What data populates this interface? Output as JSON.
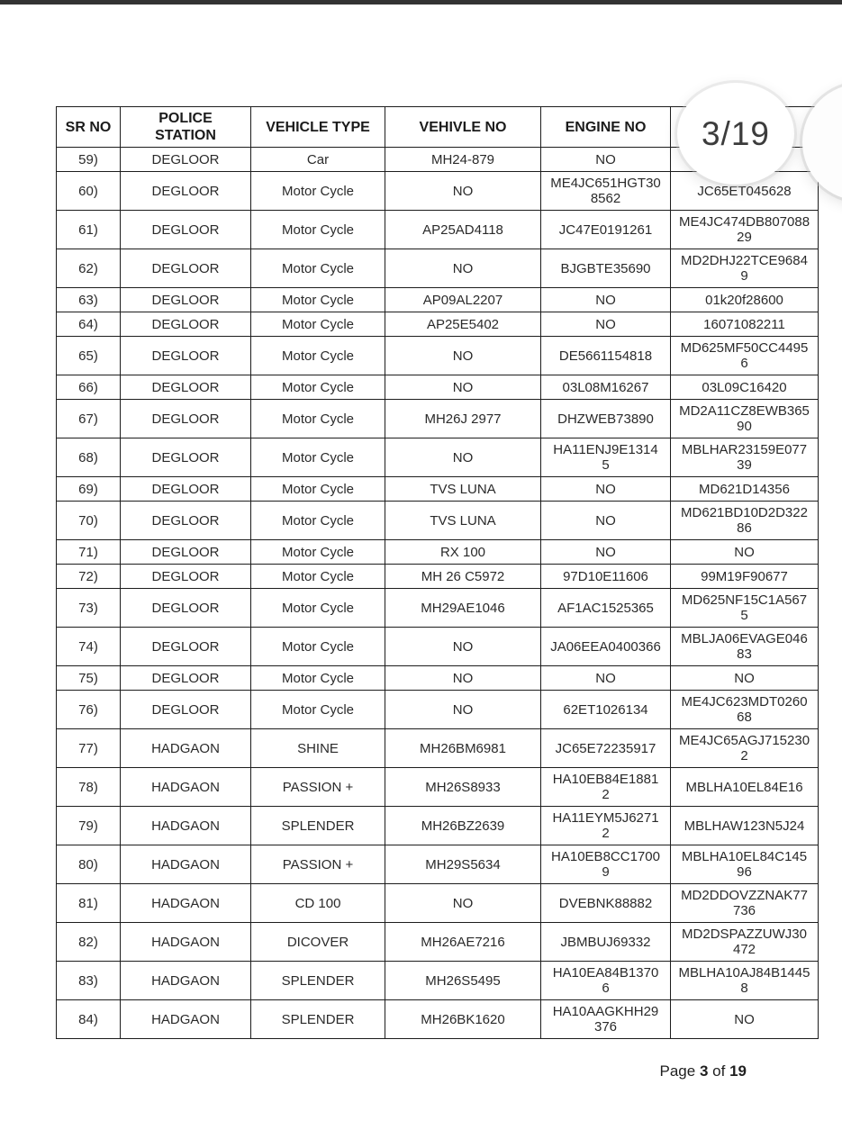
{
  "app": {
    "top_bar_color": "#333333",
    "page_indicator_label": "3/19"
  },
  "table": {
    "column_keys": [
      "sr-no",
      "police-station",
      "vehicle-type",
      "vehicle-no",
      "engine-no",
      "chassis-no"
    ],
    "headers": [
      "SR NO",
      "POLICE STATION",
      "VEHICLE TYPE",
      "VEHIVLE NO",
      "ENGINE NO",
      ""
    ],
    "rows": [
      [
        "59)",
        "DEGLOOR",
        "Car",
        "MH24-879",
        "NO",
        ""
      ],
      [
        "60)",
        "DEGLOOR",
        "Motor Cycle",
        "NO",
        "ME4JC651HGT308562",
        "JC65ET045628"
      ],
      [
        "61)",
        "DEGLOOR",
        "Motor Cycle",
        "AP25AD4118",
        "JC47E0191261",
        "ME4JC474DB80708829"
      ],
      [
        "62)",
        "DEGLOOR",
        "Motor Cycle",
        "NO",
        "BJGBTE35690",
        "MD2DHJ22TCE96849"
      ],
      [
        "63)",
        "DEGLOOR",
        "Motor Cycle",
        "AP09AL2207",
        "NO",
        "01k20f28600"
      ],
      [
        "64)",
        "DEGLOOR",
        "Motor Cycle",
        "AP25E5402",
        "NO",
        "16071082211"
      ],
      [
        "65)",
        "DEGLOOR",
        "Motor Cycle",
        "NO",
        "DE5661154818",
        "MD625MF50CC44956"
      ],
      [
        "66)",
        "DEGLOOR",
        "Motor Cycle",
        "NO",
        "03L08M16267",
        "03L09C16420"
      ],
      [
        "67)",
        "DEGLOOR",
        "Motor Cycle",
        "MH26J 2977",
        "DHZWEB73890",
        "MD2A11CZ8EWB36590"
      ],
      [
        "68)",
        "DEGLOOR",
        "Motor Cycle",
        "NO",
        "HA11ENJ9E13145",
        "MBLHAR23159E07739"
      ],
      [
        "69)",
        "DEGLOOR",
        "Motor Cycle",
        "TVS LUNA",
        "NO",
        "MD621D14356"
      ],
      [
        "70)",
        "DEGLOOR",
        "Motor Cycle",
        "TVS LUNA",
        "NO",
        "MD621BD10D2D32286"
      ],
      [
        "71)",
        "DEGLOOR",
        "Motor Cycle",
        "RX 100",
        "NO",
        "NO"
      ],
      [
        "72)",
        "DEGLOOR",
        "Motor Cycle",
        "MH 26 C5972",
        "97D10E11606",
        "99M19F90677"
      ],
      [
        "73)",
        "DEGLOOR",
        "Motor Cycle",
        "MH29AE1046",
        "AF1AC1525365",
        "MD625NF15C1A5675"
      ],
      [
        "74)",
        "DEGLOOR",
        "Motor Cycle",
        "NO",
        "JA06EEA0400366",
        "MBLJA06EVAGE04683"
      ],
      [
        "75)",
        "DEGLOOR",
        "Motor Cycle",
        "NO",
        "NO",
        "NO"
      ],
      [
        "76)",
        "DEGLOOR",
        "Motor Cycle",
        "NO",
        "62ET1026134",
        "ME4JC623MDT026068"
      ],
      [
        "77)",
        "HADGAON",
        "SHINE",
        "MH26BM6981",
        "JC65E72235917",
        "ME4JC65AGJ7152302"
      ],
      [
        "78)",
        "HADGAON",
        "PASSION +",
        "MH26S8933",
        "HA10EB84E18812",
        "MBLHA10EL84E16"
      ],
      [
        "79)",
        "HADGAON",
        "SPLENDER",
        "MH26BZ2639",
        "HA11EYM5J62712",
        "MBLHAW123N5J24"
      ],
      [
        "80)",
        "HADGAON",
        "PASSION +",
        "MH29S5634",
        "HA10EB8CC17009",
        "MBLHA10EL84C14596"
      ],
      [
        "81)",
        "HADGAON",
        "CD 100",
        "NO",
        "DVEBNK88882",
        "MD2DDOVZZNAK77736"
      ],
      [
        "82)",
        "HADGAON",
        "DICOVER",
        "MH26AE7216",
        "JBMBUJ69332",
        "MD2DSPAZZUWJ30472"
      ],
      [
        "83)",
        "HADGAON",
        "SPLENDER",
        "MH26S5495",
        "HA10EA84B13706",
        "MBLHA10AJ84B14458"
      ],
      [
        "84)",
        "HADGAON",
        "SPLENDER",
        "MH26BK1620",
        "HA10AAGKHH29376",
        "NO"
      ]
    ]
  },
  "footer": {
    "word_page": "Page",
    "current_page": "3",
    "word_of": "of",
    "total_pages": "19"
  }
}
